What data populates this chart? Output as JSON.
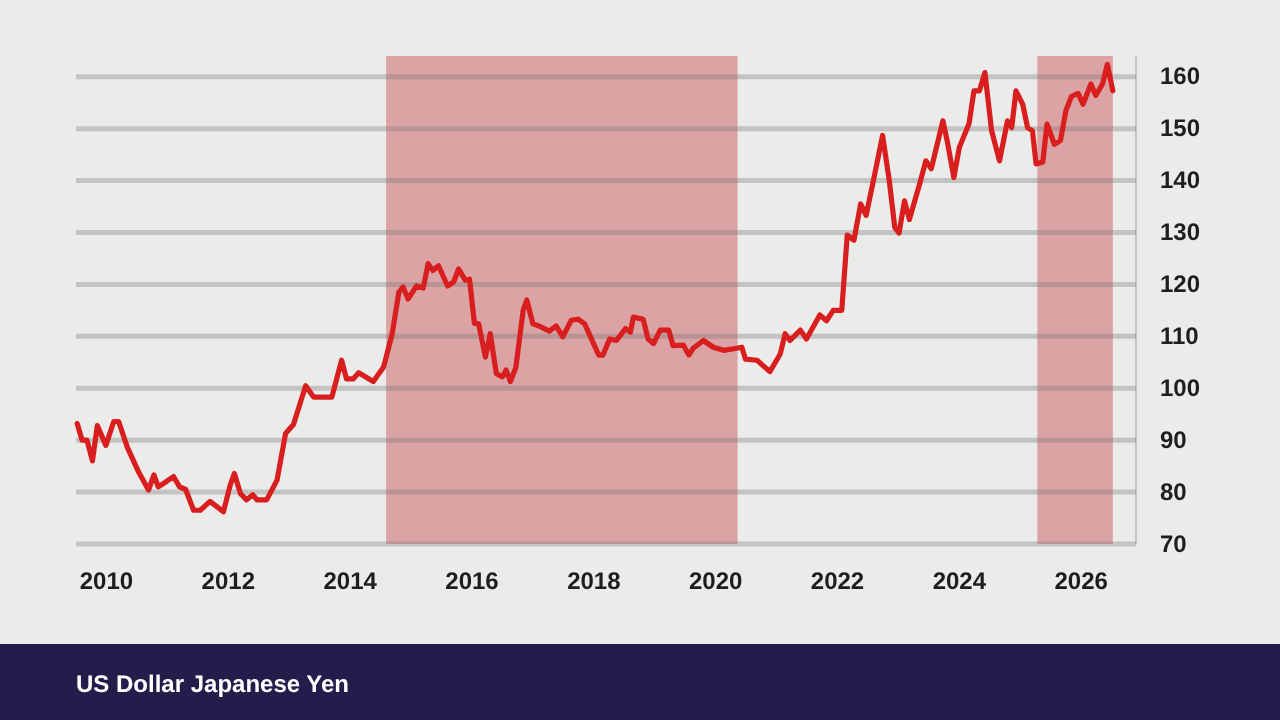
{
  "chart_data": {
    "type": "line",
    "title": "US Dollar Japanese Yen",
    "xlim": [
      2009.5,
      2026.9
    ],
    "xticks": [
      2010,
      2012,
      2014,
      2016,
      2018,
      2020,
      2022,
      2024,
      2026
    ],
    "ylim": [
      70,
      164
    ],
    "yticks": [
      70,
      80,
      90,
      100,
      110,
      120,
      130,
      140,
      150,
      160
    ],
    "grid": "y",
    "bands": [
      {
        "axis": "x",
        "from": 2014.59,
        "to": 2020.36,
        "color": "#dca3a5"
      },
      {
        "axis": "x",
        "from": 2025.28,
        "to": 2026.52,
        "color": "#dca3a5"
      }
    ],
    "series": [
      {
        "color": "#d81e1e",
        "x": [
          2009.52,
          2009.6,
          2009.68,
          2009.77,
          2009.85,
          2009.99,
          2010.12,
          2010.2,
          2010.34,
          2010.53,
          2010.69,
          2010.78,
          2010.85,
          2010.98,
          2011.1,
          2011.2,
          2011.3,
          2011.43,
          2011.54,
          2011.7,
          2011.92,
          2012.03,
          2012.1,
          2012.2,
          2012.3,
          2012.4,
          2012.47,
          2012.63,
          2012.8,
          2012.94,
          2013.07,
          2013.27,
          2013.4,
          2013.7,
          2013.86,
          2013.94,
          2014.05,
          2014.14,
          2014.38,
          2014.55,
          2014.69,
          2014.8,
          2014.87,
          2014.95,
          2015.09,
          2015.2,
          2015.28,
          2015.36,
          2015.45,
          2015.6,
          2015.7,
          2015.78,
          2015.89,
          2015.96,
          2016.04,
          2016.11,
          2016.22,
          2016.3,
          2016.4,
          2016.5,
          2016.56,
          2016.63,
          2016.72,
          2016.84,
          2016.9,
          2017.0,
          2017.1,
          2017.27,
          2017.38,
          2017.49,
          2017.63,
          2017.74,
          2017.85,
          2018.08,
          2018.15,
          2018.26,
          2018.37,
          2018.52,
          2018.6,
          2018.65,
          2018.81,
          2018.89,
          2018.98,
          2019.09,
          2019.23,
          2019.3,
          2019.47,
          2019.56,
          2019.63,
          2019.8,
          2019.96,
          2020.13,
          2020.3,
          2020.43,
          2020.49,
          2020.68,
          2020.89,
          2021.06,
          2021.14,
          2021.22,
          2021.39,
          2021.49,
          2021.71,
          2021.82,
          2021.93,
          2022.07,
          2022.16,
          2022.27,
          2022.38,
          2022.47,
          2022.6,
          2022.74,
          2022.85,
          2022.94,
          2023.01,
          2023.1,
          2023.18,
          2023.34,
          2023.45,
          2023.54,
          2023.73,
          2023.8,
          2023.91,
          2024.0,
          2024.16,
          2024.24,
          2024.33,
          2024.42,
          2024.53,
          2024.66,
          2024.79,
          2024.86,
          2024.93,
          2025.04,
          2025.12,
          2025.2,
          2025.26,
          2025.37,
          2025.44,
          2025.56,
          2025.66,
          2025.75,
          2025.84,
          2025.95,
          2026.03,
          2026.16,
          2026.24,
          2026.35,
          2026.43,
          2026.52
        ],
        "values": [
          93.2,
          90,
          90,
          86,
          92.8,
          89,
          93.6,
          93.6,
          88.7,
          83.8,
          80.4,
          83.3,
          81,
          82,
          83,
          81,
          80.5,
          76.5,
          76.5,
          78.2,
          76.2,
          81.3,
          83.6,
          79.7,
          78.5,
          79.5,
          78.5,
          78.5,
          82.3,
          91.3,
          93,
          100.5,
          98.3,
          98.3,
          105.4,
          101.8,
          101.8,
          103,
          101.3,
          104.1,
          110.5,
          118.5,
          119.5,
          117.2,
          119.7,
          119.3,
          124,
          122.7,
          123.6,
          119.7,
          120.5,
          123,
          120.8,
          121,
          112.5,
          112.4,
          106,
          110.5,
          102.8,
          102.2,
          103.5,
          101.3,
          104,
          115,
          117,
          112.4,
          112,
          111,
          112,
          109.9,
          113.1,
          113.3,
          112.4,
          106.4,
          106.4,
          109.5,
          109.2,
          111.5,
          110.8,
          113.7,
          113.3,
          109.5,
          108.6,
          111.2,
          111.2,
          108.2,
          108.3,
          106.4,
          107.7,
          109.2,
          107.9,
          107.3,
          107.6,
          107.9,
          105.6,
          105.4,
          103.2,
          106.6,
          110.5,
          109.2,
          111.2,
          109.5,
          114.1,
          113,
          115,
          115,
          129.5,
          128.5,
          135.5,
          133.3,
          140.6,
          148.7,
          140,
          131,
          129.9,
          136.1,
          132.5,
          139,
          143.8,
          142.3,
          151.5,
          147.7,
          140.6,
          146.4,
          151,
          157.3,
          157.3,
          160.8,
          149.6,
          143.8,
          151.5,
          150.2,
          157.3,
          154.7,
          150.2,
          149.6,
          143.2,
          143.6,
          150.9,
          147,
          147.7,
          153.5,
          156.2,
          156.8,
          154.7,
          158.6,
          156.4,
          158.6,
          162.4,
          157.3
        ]
      }
    ]
  }
}
